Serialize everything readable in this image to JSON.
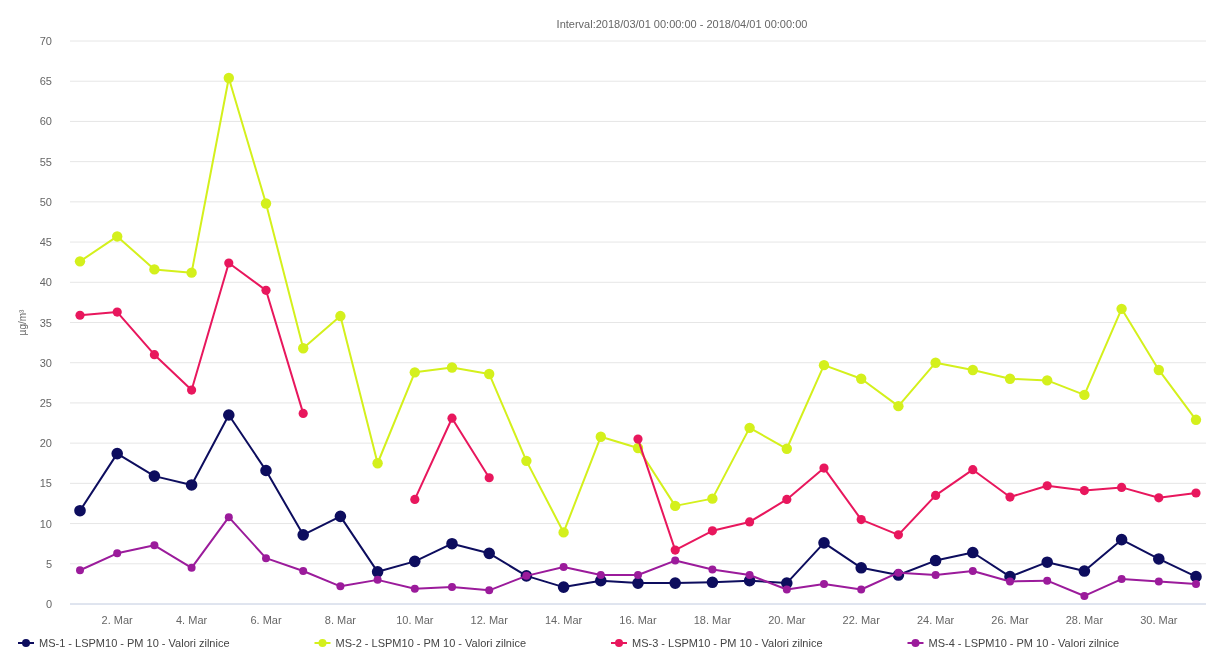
{
  "chart_data": {
    "type": "line",
    "title": "Interval:2018/03/01 00:00:00 - 2018/04/01 00:00:00",
    "ylabel": "µg/m³",
    "categories": [
      null,
      "2. Mar",
      null,
      "4. Mar",
      null,
      "6. Mar",
      null,
      "8. Mar",
      null,
      "10. Mar",
      null,
      "12. Mar",
      null,
      "14. Mar",
      null,
      "16. Mar",
      null,
      "18. Mar",
      null,
      "20. Mar",
      null,
      "22. Mar",
      null,
      "24. Mar",
      null,
      "26. Mar",
      null,
      "28. Mar",
      null,
      "30. Mar",
      null
    ],
    "series": [
      {
        "name": "MS-1 - LSPM10 - PM 10 - Valori zilnice",
        "color": "#0d0d5e",
        "values": [
          11.6,
          18.7,
          15.9,
          14.8,
          23.5,
          16.6,
          8.6,
          10.9,
          4.0,
          5.3,
          7.5,
          6.3,
          3.5,
          2.1,
          2.9,
          2.6,
          2.6,
          2.7,
          2.9,
          2.6,
          7.6,
          4.5,
          3.6,
          5.4,
          6.4,
          3.4,
          5.2,
          4.1,
          8.0,
          5.6,
          3.4
        ]
      },
      {
        "name": "MS-2 - LSPM10 - PM 10 - Valori zilnice",
        "color": "#d4f01c",
        "values": [
          42.6,
          45.7,
          41.6,
          41.2,
          65.4,
          49.8,
          31.8,
          35.8,
          17.5,
          28.8,
          29.4,
          28.6,
          17.8,
          8.9,
          20.8,
          19.4,
          12.2,
          13.1,
          21.9,
          19.3,
          29.7,
          28.0,
          24.6,
          30.0,
          29.1,
          28.0,
          27.8,
          26.0,
          36.7,
          29.1,
          22.9
        ]
      },
      {
        "name": "MS-3 - LSPM10 - PM 10 - Valori zilnice",
        "color": "#e8175d",
        "values": [
          35.9,
          36.3,
          31.0,
          26.6,
          42.4,
          39.0,
          23.7,
          null,
          null,
          13.0,
          23.1,
          15.7,
          null,
          null,
          null,
          20.5,
          6.7,
          9.1,
          10.2,
          13.0,
          16.9,
          10.5,
          8.6,
          13.5,
          16.7,
          13.3,
          14.7,
          14.1,
          14.5,
          13.2,
          13.8
        ]
      },
      {
        "name": "MS-4 - LSPM10 - PM 10 - Valori zilnice",
        "color": "#9b1b9b",
        "values": [
          4.2,
          6.3,
          7.3,
          4.5,
          10.8,
          5.7,
          4.1,
          2.2,
          3.0,
          1.9,
          2.1,
          1.7,
          3.5,
          4.6,
          3.6,
          3.6,
          5.4,
          4.3,
          3.6,
          1.8,
          2.5,
          1.8,
          3.9,
          3.6,
          4.1,
          2.8,
          2.9,
          1.0,
          3.1,
          2.8,
          2.5
        ]
      }
    ],
    "ylim": [
      0,
      70
    ],
    "yticks": [
      0,
      5,
      10,
      15,
      20,
      25,
      30,
      35,
      40,
      45,
      50,
      55,
      60,
      65,
      70
    ],
    "grid": "y",
    "legend": "bottom",
    "marker": "circle"
  }
}
